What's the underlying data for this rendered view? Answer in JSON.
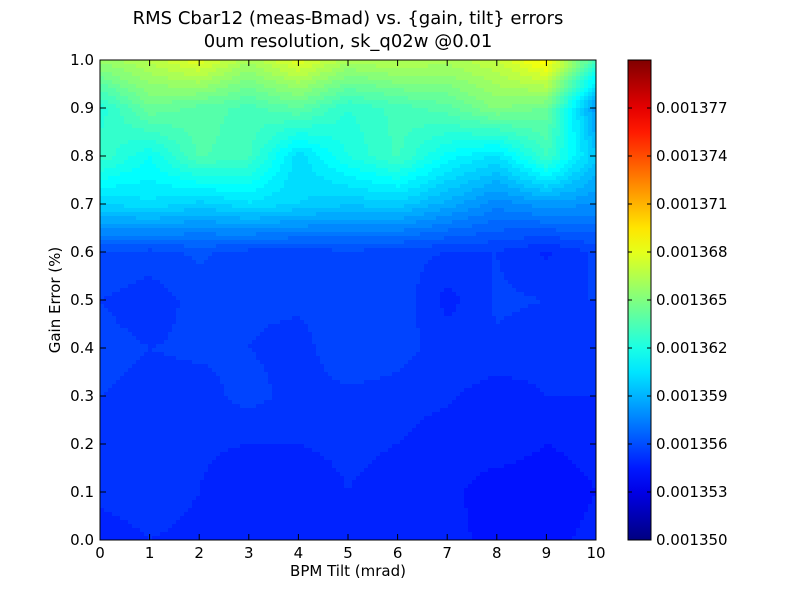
{
  "chart_data": {
    "type": "heatmap",
    "title": "RMS Cbar12 (meas-Bmad) vs. {gain, tilt} errors",
    "subtitle": "0um resolution, sk_q02w @0.01",
    "xlabel": "BPM Tilt (mrad)",
    "ylabel": "Gain Error (%)",
    "xlim": [
      0,
      10
    ],
    "ylim": [
      0,
      1
    ],
    "x": [
      0,
      1,
      2,
      3,
      4,
      5,
      6,
      7,
      8,
      9,
      10
    ],
    "y": [
      0.0,
      0.1,
      0.2,
      0.3,
      0.4,
      0.5,
      0.6,
      0.7,
      0.8,
      0.9,
      1.0
    ],
    "x_ticks": [
      "0",
      "1",
      "2",
      "3",
      "4",
      "5",
      "6",
      "7",
      "8",
      "9",
      "10"
    ],
    "y_ticks": [
      "0.0",
      "0.1",
      "0.2",
      "0.3",
      "0.4",
      "0.5",
      "0.6",
      "0.7",
      "0.8",
      "0.9",
      "1.0"
    ],
    "colorbar": {
      "vmin": 0.00135,
      "vmax": 0.00138,
      "colormap": "jet",
      "ticks": [
        "0.001350",
        "0.001353",
        "0.001356",
        "0.001359",
        "0.001362",
        "0.001365",
        "0.001368",
        "0.001371",
        "0.001374",
        "0.001377"
      ],
      "tick_values": [
        0.00135,
        0.001353,
        0.001356,
        0.001359,
        0.001362,
        0.001365,
        0.001368,
        0.001371,
        0.001374,
        0.001377
      ]
    },
    "z": [
      [
        0.0013548,
        0.001355,
        0.0013549,
        0.0013547,
        0.0013546,
        0.0013548,
        0.0013549,
        0.0013546,
        0.0013544,
        0.0013544,
        0.0013546
      ],
      [
        0.0013551,
        0.0013552,
        0.001355,
        0.0013545,
        0.0013547,
        0.001355,
        0.0013548,
        0.0013546,
        0.0013543,
        0.0013543,
        0.0013545
      ],
      [
        0.0013553,
        0.001355,
        0.0013551,
        0.001355,
        0.001355,
        0.0013551,
        0.001355,
        0.0013546,
        0.0013547,
        0.0013545,
        0.0013546
      ],
      [
        0.0013555,
        0.0013553,
        0.0013553,
        0.0013557,
        0.0013553,
        0.0013554,
        0.0013553,
        0.0013551,
        0.0013547,
        0.001355,
        0.001355
      ],
      [
        0.0013557,
        0.0013555,
        0.0013556,
        0.0013555,
        0.0013553,
        0.0013559,
        0.0013557,
        0.0013553,
        0.0013554,
        0.0013552,
        0.0013554
      ],
      [
        0.0013555,
        0.0013552,
        0.0013557,
        0.0013556,
        0.0013556,
        0.0013557,
        0.0013559,
        0.0013548,
        0.0013556,
        0.0013555,
        0.0013555
      ],
      [
        0.001356,
        0.0013558,
        0.0013561,
        0.0013558,
        0.0013557,
        0.0013559,
        0.0013557,
        0.0013555,
        0.0013555,
        0.0013549,
        0.0013556
      ],
      [
        0.00136,
        0.0013604,
        0.0013598,
        0.0013604,
        0.00136,
        0.0013596,
        0.0013598,
        0.0013588,
        0.0013577,
        0.0013583,
        0.001358
      ],
      [
        0.0013629,
        0.0013615,
        0.0013636,
        0.0013631,
        0.0013602,
        0.001362,
        0.0013631,
        0.0013613,
        0.0013604,
        0.001363,
        0.0013596
      ],
      [
        0.0013622,
        0.0013644,
        0.0013638,
        0.0013633,
        0.001364,
        0.0013625,
        0.0013632,
        0.0013638,
        0.0013651,
        0.0013644,
        0.0013581
      ],
      [
        0.0013657,
        0.0013666,
        0.0013679,
        0.0013661,
        0.0013679,
        0.0013662,
        0.0013666,
        0.0013662,
        0.001367,
        0.001369,
        0.001363
      ]
    ]
  }
}
